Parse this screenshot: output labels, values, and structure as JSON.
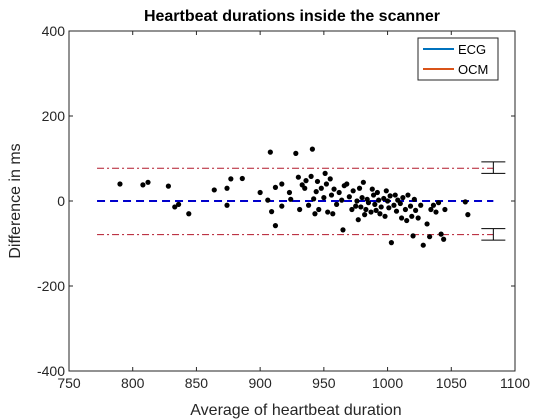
{
  "chart_data": {
    "type": "scatter",
    "title": "Heartbeat durations inside the scanner",
    "xlabel": "Average of heartbeat duration",
    "ylabel": "Difference in ms",
    "xlim": [
      750,
      1100
    ],
    "ylim": [
      -400,
      400
    ],
    "xticks": [
      750,
      800,
      850,
      900,
      950,
      1000,
      1050,
      1100
    ],
    "yticks": [
      -400,
      -200,
      0,
      200,
      400
    ],
    "grid": false,
    "legend": {
      "placement": "top-right",
      "entries": [
        {
          "name": "ECG",
          "color": "#0072BD"
        },
        {
          "name": "OCM",
          "color": "#D95319"
        }
      ]
    },
    "mean_line": {
      "y": 0,
      "x_range": [
        772,
        1083
      ],
      "style": "dashed",
      "color": "#0000CC"
    },
    "limits_of_agreement": {
      "upper": 77,
      "lower": -79,
      "x_range": [
        772,
        1083
      ],
      "style": "dash-dot",
      "color": "#B2182B"
    },
    "confidence_bars": {
      "x": 1083,
      "upper": [
        65,
        92
      ],
      "lower": [
        -65,
        -92
      ]
    },
    "points": [
      {
        "x": 790,
        "y": 40
      },
      {
        "x": 808,
        "y": 38
      },
      {
        "x": 812,
        "y": 44
      },
      {
        "x": 828,
        "y": 35
      },
      {
        "x": 833,
        "y": -14
      },
      {
        "x": 836,
        "y": -8
      },
      {
        "x": 844,
        "y": -30
      },
      {
        "x": 864,
        "y": 26
      },
      {
        "x": 874,
        "y": 30
      },
      {
        "x": 874,
        "y": -10
      },
      {
        "x": 877,
        "y": 52
      },
      {
        "x": 886,
        "y": 53
      },
      {
        "x": 900,
        "y": 20
      },
      {
        "x": 908,
        "y": 115
      },
      {
        "x": 906,
        "y": 2
      },
      {
        "x": 909,
        "y": -25
      },
      {
        "x": 912,
        "y": -58
      },
      {
        "x": 912,
        "y": 32
      },
      {
        "x": 917,
        "y": 40
      },
      {
        "x": 917,
        "y": -12
      },
      {
        "x": 923,
        "y": 20
      },
      {
        "x": 924,
        "y": 4
      },
      {
        "x": 928,
        "y": 112
      },
      {
        "x": 930,
        "y": 56
      },
      {
        "x": 931,
        "y": -20
      },
      {
        "x": 933,
        "y": 38
      },
      {
        "x": 935,
        "y": 30
      },
      {
        "x": 936,
        "y": 48
      },
      {
        "x": 938,
        "y": -10
      },
      {
        "x": 940,
        "y": 58
      },
      {
        "x": 941,
        "y": 122
      },
      {
        "x": 942,
        "y": 5
      },
      {
        "x": 943,
        "y": -30
      },
      {
        "x": 944,
        "y": 22
      },
      {
        "x": 945,
        "y": 46
      },
      {
        "x": 946,
        "y": -20
      },
      {
        "x": 948,
        "y": 30
      },
      {
        "x": 950,
        "y": 8
      },
      {
        "x": 951,
        "y": 65
      },
      {
        "x": 952,
        "y": 40
      },
      {
        "x": 953,
        "y": -26
      },
      {
        "x": 955,
        "y": 52
      },
      {
        "x": 956,
        "y": 14
      },
      {
        "x": 957,
        "y": -30
      },
      {
        "x": 958,
        "y": 28
      },
      {
        "x": 960,
        "y": -8
      },
      {
        "x": 962,
        "y": 20
      },
      {
        "x": 964,
        "y": 2
      },
      {
        "x": 965,
        "y": -68
      },
      {
        "x": 966,
        "y": 36
      },
      {
        "x": 968,
        "y": 40
      },
      {
        "x": 970,
        "y": 10
      },
      {
        "x": 972,
        "y": -20
      },
      {
        "x": 973,
        "y": 24
      },
      {
        "x": 975,
        "y": -12
      },
      {
        "x": 976,
        "y": 0
      },
      {
        "x": 977,
        "y": -44
      },
      {
        "x": 978,
        "y": 30
      },
      {
        "x": 979,
        "y": -14
      },
      {
        "x": 980,
        "y": 8
      },
      {
        "x": 981,
        "y": 44
      },
      {
        "x": 982,
        "y": -32
      },
      {
        "x": 983,
        "y": -20
      },
      {
        "x": 984,
        "y": 4
      },
      {
        "x": 985,
        "y": -4
      },
      {
        "x": 987,
        "y": -26
      },
      {
        "x": 988,
        "y": 28
      },
      {
        "x": 989,
        "y": 14
      },
      {
        "x": 990,
        "y": -8
      },
      {
        "x": 991,
        "y": -22
      },
      {
        "x": 992,
        "y": 20
      },
      {
        "x": 993,
        "y": 2
      },
      {
        "x": 994,
        "y": -30
      },
      {
        "x": 995,
        "y": -14
      },
      {
        "x": 997,
        "y": 6
      },
      {
        "x": 998,
        "y": -36
      },
      {
        "x": 999,
        "y": 24
      },
      {
        "x": 1000,
        "y": 0
      },
      {
        "x": 1001,
        "y": -16
      },
      {
        "x": 1002,
        "y": 12
      },
      {
        "x": 1003,
        "y": -98
      },
      {
        "x": 1005,
        "y": -10
      },
      {
        "x": 1006,
        "y": 14
      },
      {
        "x": 1007,
        "y": -24
      },
      {
        "x": 1008,
        "y": 2
      },
      {
        "x": 1010,
        "y": -6
      },
      {
        "x": 1011,
        "y": -40
      },
      {
        "x": 1012,
        "y": 8
      },
      {
        "x": 1014,
        "y": -20
      },
      {
        "x": 1015,
        "y": -46
      },
      {
        "x": 1016,
        "y": 14
      },
      {
        "x": 1018,
        "y": -12
      },
      {
        "x": 1019,
        "y": -36
      },
      {
        "x": 1020,
        "y": -82
      },
      {
        "x": 1021,
        "y": 4
      },
      {
        "x": 1022,
        "y": -22
      },
      {
        "x": 1024,
        "y": -40
      },
      {
        "x": 1026,
        "y": -10
      },
      {
        "x": 1028,
        "y": -104
      },
      {
        "x": 1031,
        "y": -54
      },
      {
        "x": 1033,
        "y": -84
      },
      {
        "x": 1034,
        "y": -20
      },
      {
        "x": 1036,
        "y": -10
      },
      {
        "x": 1038,
        "y": -26
      },
      {
        "x": 1040,
        "y": -4
      },
      {
        "x": 1042,
        "y": -78
      },
      {
        "x": 1044,
        "y": -90
      },
      {
        "x": 1045,
        "y": -20
      },
      {
        "x": 1061,
        "y": -2
      },
      {
        "x": 1063,
        "y": -32
      }
    ]
  }
}
